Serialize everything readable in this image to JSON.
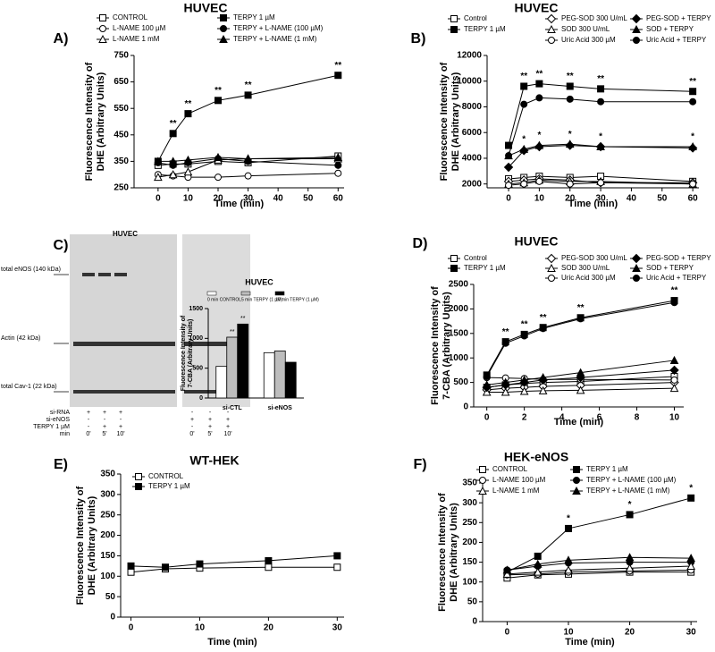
{
  "chart_data": [
    {
      "type": "line",
      "panel": "A)",
      "title": "HUVEC",
      "xlabel": "Time (min)",
      "ylabel": [
        "Fluorescence Intensity of",
        "DHE (Arbitrary Units)"
      ],
      "x": [
        0,
        5,
        10,
        20,
        30,
        60
      ],
      "xlim": [
        -8,
        62
      ],
      "xticks": [
        0,
        10,
        20,
        30,
        40,
        50,
        60
      ],
      "ylim": [
        250,
        750
      ],
      "yticks": [
        250,
        350,
        450,
        550,
        650,
        750
      ],
      "series": [
        {
          "name": "CONTROL",
          "marker": "square-open",
          "color": "#000000",
          "values": [
            335,
            340,
            340,
            350,
            345,
            370
          ]
        },
        {
          "name": "TERPY 1 µM",
          "marker": "square",
          "color": "#000000",
          "values": [
            350,
            455,
            530,
            580,
            600,
            675
          ],
          "significance": [
            null,
            "**",
            "**",
            "**",
            "**",
            "**"
          ]
        },
        {
          "name": "L-NAME 100 µM",
          "marker": "circle-open",
          "color": "#000000",
          "values": [
            300,
            295,
            290,
            290,
            295,
            305
          ]
        },
        {
          "name": "TERPY + L-NAME (100 µM)",
          "marker": "circle",
          "color": "#000000",
          "values": [
            345,
            335,
            345,
            360,
            350,
            335
          ]
        },
        {
          "name": "L-NAME 1 mM",
          "marker": "triangle-open",
          "color": "#000000",
          "values": [
            290,
            300,
            310,
            355,
            360,
            360
          ]
        },
        {
          "name": "TERPY + L-NAME (1 mM)",
          "marker": "triangle",
          "color": "#000000",
          "values": [
            350,
            350,
            355,
            365,
            360,
            365
          ]
        }
      ]
    },
    {
      "type": "line",
      "panel": "B)",
      "title": "HUVEC",
      "xlabel": "Time (min)",
      "ylabel": [
        "Fluorescence Intensity of",
        "DHE (Arbitrary Units)"
      ],
      "x": [
        0,
        5,
        10,
        20,
        30,
        60
      ],
      "xlim": [
        -7,
        62
      ],
      "xticks": [
        0,
        10,
        20,
        30,
        40,
        50,
        60
      ],
      "ylim": [
        1700,
        12000
      ],
      "yticks": [
        2000,
        4000,
        6000,
        8000,
        10000,
        12000
      ],
      "series": [
        {
          "name": "Control",
          "marker": "square-open",
          "color": "#000000",
          "values": [
            2400,
            2500,
            2600,
            2500,
            2600,
            2200
          ]
        },
        {
          "name": "TERPY 1 µM",
          "marker": "square",
          "color": "#000000",
          "values": [
            5000,
            9600,
            9800,
            9600,
            9400,
            9200
          ],
          "significance": [
            null,
            "**",
            "**",
            "**",
            "**",
            "**"
          ]
        },
        {
          "name": "PEG-SOD 300 U/mL",
          "marker": "diamond-open",
          "color": "#000000",
          "values": [
            2200,
            2300,
            2400,
            2300,
            2100,
            2100
          ]
        },
        {
          "name": "SOD 300 U/mL",
          "marker": "triangle-open",
          "color": "#000000",
          "values": [
            2000,
            2100,
            2300,
            2200,
            2200,
            2000
          ]
        },
        {
          "name": "Uric Acid 300 µM",
          "marker": "circle-open",
          "color": "#000000",
          "values": [
            1900,
            2000,
            2200,
            2000,
            2100,
            2000
          ]
        },
        {
          "name": "PEG-SOD + TERPY",
          "marker": "diamond",
          "color": "#000000",
          "values": [
            3300,
            4600,
            4900,
            5000,
            4900,
            4800
          ]
        },
        {
          "name": "SOD + TERPY",
          "marker": "triangle",
          "color": "#000000",
          "values": [
            4200,
            4700,
            5000,
            5100,
            4900,
            4900
          ],
          "significance": [
            null,
            "*",
            "*",
            "*",
            "*",
            "*"
          ]
        },
        {
          "name": "Uric Acid + TERPY",
          "marker": "circle",
          "color": "#000000",
          "values": [
            4200,
            8200,
            8700,
            8600,
            8400,
            8400
          ]
        }
      ]
    },
    {
      "type": "bar",
      "title": "HUVEC",
      "ylabel": [
        "Fluorescence Intensity of",
        "7-CBA (Arbitrary Units)"
      ],
      "categories": [
        "si-CTL",
        "si-eNOS"
      ],
      "ylim": [
        0,
        1500
      ],
      "yticks": [
        0,
        500,
        1000,
        1500
      ],
      "series": [
        {
          "name": "0 min CONTROL",
          "color": "#ffffff",
          "values": [
            530,
            760
          ]
        },
        {
          "name": "5 min TERPY (1 µM)",
          "color": "#bdbdbd",
          "values": [
            1020,
            790
          ],
          "significance": [
            "**",
            null
          ]
        },
        {
          "name": "10 min TERPY (1 µM)",
          "color": "#000000",
          "values": [
            1240,
            600
          ],
          "significance": [
            "**",
            null
          ]
        }
      ]
    },
    {
      "type": "line",
      "panel": "D)",
      "title": "HUVEC",
      "xlabel": "Time (min)",
      "ylabel": [
        "Fluorescence Intensity of",
        "7-CBA (Arbitrary Units)"
      ],
      "x": [
        0,
        1,
        2,
        3,
        5,
        10
      ],
      "xlim": [
        -0.7,
        10.5
      ],
      "xticks": [
        0,
        2,
        4,
        6,
        8,
        10
      ],
      "ylim": [
        0,
        2500
      ],
      "yticks": [
        0,
        500,
        1000,
        1500,
        2000,
        2500
      ],
      "series": [
        {
          "name": "Control",
          "marker": "square-open",
          "color": "#000000",
          "values": [
            400,
            450,
            480,
            500,
            520,
            620
          ]
        },
        {
          "name": "TERPY 1 µM",
          "marker": "square",
          "color": "#000000",
          "values": [
            650,
            1330,
            1480,
            1620,
            1820,
            2170
          ],
          "significance": [
            null,
            "**",
            "**",
            "**",
            "**",
            "**"
          ]
        },
        {
          "name": "PEG-SOD 300 U/mL",
          "marker": "diamond-open",
          "color": "#000000",
          "values": [
            350,
            380,
            400,
            420,
            440,
            500
          ]
        },
        {
          "name": "SOD 300 U/mL",
          "marker": "triangle-open",
          "color": "#000000",
          "values": [
            300,
            300,
            320,
            330,
            340,
            380
          ]
        },
        {
          "name": "Uric Acid 300 µM",
          "marker": "circle-open",
          "color": "#000000",
          "values": [
            600,
            590,
            580,
            560,
            560,
            550
          ]
        },
        {
          "name": "PEG-SOD + TERPY",
          "marker": "diamond",
          "color": "#000000",
          "values": [
            400,
            450,
            500,
            550,
            600,
            750
          ]
        },
        {
          "name": "SOD + TERPY",
          "marker": "triangle",
          "color": "#000000",
          "values": [
            450,
            500,
            550,
            600,
            700,
            950
          ]
        },
        {
          "name": "Uric Acid + TERPY",
          "marker": "circle",
          "color": "#000000",
          "values": [
            620,
            1300,
            1450,
            1600,
            1800,
            2130
          ]
        }
      ]
    },
    {
      "type": "line",
      "panel": "E)",
      "title": "WT-HEK",
      "xlabel": "Time (min)",
      "ylabel": [
        "Fluorescence Intensity of",
        "DHE (Arbitrary Units)"
      ],
      "x": [
        0,
        5,
        10,
        20,
        30
      ],
      "xlim": [
        -1.5,
        31
      ],
      "xticks": [
        0,
        10,
        20,
        30
      ],
      "ylim": [
        0,
        350
      ],
      "yticks": [
        0,
        50,
        100,
        150,
        200,
        250,
        300,
        350
      ],
      "series": [
        {
          "name": "CONTROL",
          "marker": "square-open",
          "color": "#000000",
          "values": [
            110,
            118,
            120,
            122,
            122
          ]
        },
        {
          "name": "TERPY 1 µM",
          "marker": "square",
          "color": "#000000",
          "values": [
            125,
            122,
            130,
            138,
            150
          ]
        }
      ]
    },
    {
      "type": "line",
      "panel": "F)",
      "title": "HEK-eNOS",
      "xlabel": "Time (min)",
      "ylabel": [
        "Fluorescence Intensity of",
        "DHE (Arbitrary Units)"
      ],
      "x": [
        0,
        5,
        10,
        20,
        30
      ],
      "xlim": [
        -4,
        31
      ],
      "xticks": [
        0,
        10,
        20,
        30
      ],
      "ylim": [
        0,
        350
      ],
      "yticks": [
        0,
        50,
        100,
        150,
        200,
        250,
        300,
        350
      ],
      "series": [
        {
          "name": "CONTROL",
          "marker": "square-open",
          "color": "#000000",
          "values": [
            110,
            118,
            120,
            125,
            125
          ]
        },
        {
          "name": "TERPY 1 µM",
          "marker": "square",
          "color": "#000000",
          "values": [
            125,
            165,
            235,
            270,
            312
          ],
          "significance": [
            null,
            null,
            "*",
            "*",
            "*"
          ]
        },
        {
          "name": "L-NAME 100 µM",
          "marker": "circle-open",
          "color": "#000000",
          "values": [
            118,
            120,
            125,
            128,
            130
          ]
        },
        {
          "name": "TERPY + L-NAME (100 µM)",
          "marker": "circle",
          "color": "#000000",
          "values": [
            130,
            140,
            148,
            150,
            150
          ]
        },
        {
          "name": "L-NAME 1 mM",
          "marker": "triangle-open",
          "color": "#000000",
          "values": [
            120,
            125,
            130,
            135,
            140
          ]
        },
        {
          "name": "TERPY + L-NAME (1 mM)",
          "marker": "triangle",
          "color": "#000000",
          "values": [
            130,
            145,
            155,
            162,
            160
          ]
        }
      ]
    }
  ],
  "blot": {
    "panel": "C)",
    "title": "HUVEC",
    "bands": [
      "total eNOS (140 kDa)",
      "Actin (42 kDa)",
      "total Cav-1 (22 kDa)"
    ],
    "rows": [
      {
        "label": "si-RNA",
        "cells": [
          "+",
          "+",
          "+",
          "-",
          "-",
          "-"
        ]
      },
      {
        "label": "si-eNOS",
        "cells": [
          "-",
          "-",
          "-",
          "+",
          "+",
          "+"
        ]
      },
      {
        "label": "TERPY 1 µM",
        "cells": [
          "-",
          "+",
          "+",
          "-",
          "+",
          "+"
        ]
      },
      {
        "label": "min",
        "cells": [
          "0'",
          "5'",
          "10'",
          "0'",
          "5'",
          "10'"
        ]
      }
    ]
  }
}
